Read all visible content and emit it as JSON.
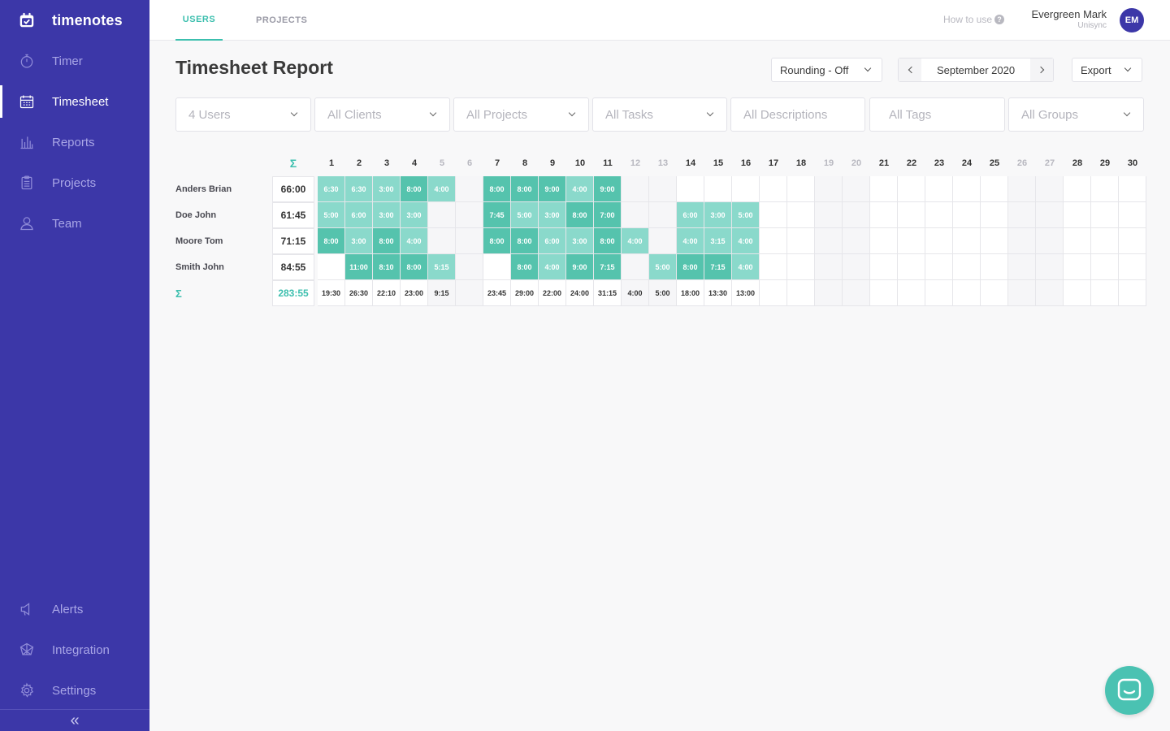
{
  "app": {
    "name": "timenotes"
  },
  "sidebar": {
    "items": [
      {
        "label": "Timer",
        "icon": "stopwatch-icon"
      },
      {
        "label": "Timesheet",
        "icon": "calendar-grid-icon"
      },
      {
        "label": "Reports",
        "icon": "bar-chart-icon"
      },
      {
        "label": "Projects",
        "icon": "clipboard-icon"
      },
      {
        "label": "Team",
        "icon": "person-icon"
      }
    ],
    "bottom_items": [
      {
        "label": "Alerts",
        "icon": "megaphone-icon"
      },
      {
        "label": "Integration",
        "icon": "network-icon"
      },
      {
        "label": "Settings",
        "icon": "gear-icon"
      }
    ],
    "collapse_glyph": "«",
    "active": "Timesheet"
  },
  "topbar": {
    "tabs": [
      {
        "label": "USERS"
      },
      {
        "label": "PROJECTS"
      }
    ],
    "how_to_use": "How to use",
    "user": {
      "name": "Evergreen Mark",
      "org": "Unisync",
      "initials": "EM"
    }
  },
  "page": {
    "title": "Timesheet Report",
    "rounding": "Rounding - Off",
    "period": "September 2020",
    "export": "Export"
  },
  "filters": {
    "users": "4 Users",
    "clients": "All Clients",
    "projects": "All Projects",
    "tasks": "All Tasks",
    "descriptions": "All Descriptions",
    "tags": "All Tags",
    "groups": "All Groups"
  },
  "timesheet": {
    "sigma": "Σ",
    "days": [
      "1",
      "2",
      "3",
      "4",
      "5",
      "6",
      "7",
      "8",
      "9",
      "10",
      "11",
      "12",
      "13",
      "14",
      "15",
      "16",
      "17",
      "18",
      "19",
      "20",
      "21",
      "22",
      "23",
      "24",
      "25",
      "26",
      "27",
      "28",
      "29",
      "30"
    ],
    "weekend_days": [
      "5",
      "6",
      "12",
      "13",
      "19",
      "20",
      "26",
      "27"
    ],
    "rows": [
      {
        "name": "Anders Brian",
        "total": "66:00",
        "values": [
          "6:30",
          "6:30",
          "3:00",
          "8:00",
          "4:00",
          "",
          "8:00",
          "8:00",
          "9:00",
          "4:00",
          "9:00",
          "",
          "",
          "",
          "",
          "",
          "",
          "",
          "",
          "",
          "",
          "",
          "",
          "",
          "",
          "",
          "",
          "",
          "",
          ""
        ]
      },
      {
        "name": "Doe John",
        "total": "61:45",
        "values": [
          "5:00",
          "6:00",
          "3:00",
          "3:00",
          "",
          "",
          "7:45",
          "5:00",
          "3:00",
          "8:00",
          "7:00",
          "",
          "",
          "6:00",
          "3:00",
          "5:00",
          "",
          "",
          "",
          "",
          "",
          "",
          "",
          "",
          "",
          "",
          "",
          "",
          "",
          ""
        ]
      },
      {
        "name": "Moore Tom",
        "total": "71:15",
        "values": [
          "8:00",
          "3:00",
          "8:00",
          "4:00",
          "",
          "",
          "8:00",
          "8:00",
          "6:00",
          "3:00",
          "8:00",
          "4:00",
          "",
          "4:00",
          "3:15",
          "4:00",
          "",
          "",
          "",
          "",
          "",
          "",
          "",
          "",
          "",
          "",
          "",
          "",
          "",
          ""
        ]
      },
      {
        "name": "Smith John",
        "total": "84:55",
        "values": [
          "",
          "11:00",
          "8:10",
          "8:00",
          "5:15",
          "",
          "",
          "8:00",
          "4:00",
          "9:00",
          "7:15",
          "",
          "5:00",
          "8:00",
          "7:15",
          "4:00",
          "",
          "",
          "",
          "",
          "",
          "",
          "",
          "",
          "",
          "",
          "",
          "",
          "",
          ""
        ]
      }
    ],
    "grand_total": "283:55",
    "day_totals": [
      "19:30",
      "26:30",
      "22:10",
      "23:00",
      "9:15",
      "",
      "23:45",
      "29:00",
      "22:00",
      "24:00",
      "31:15",
      "4:00",
      "5:00",
      "18:00",
      "13:30",
      "13:00",
      "",
      "",
      "",
      "",
      "",
      "",
      "",
      "",
      "",
      "",
      "",
      "",
      "",
      ""
    ]
  },
  "colors": {
    "sidebar": "#3c37a8",
    "accent": "#3cbfae",
    "cell_dark": "#55c3ad",
    "cell_light": "#8ad9cb"
  },
  "chat_widget": {
    "icon": "chat-bubble-icon"
  }
}
